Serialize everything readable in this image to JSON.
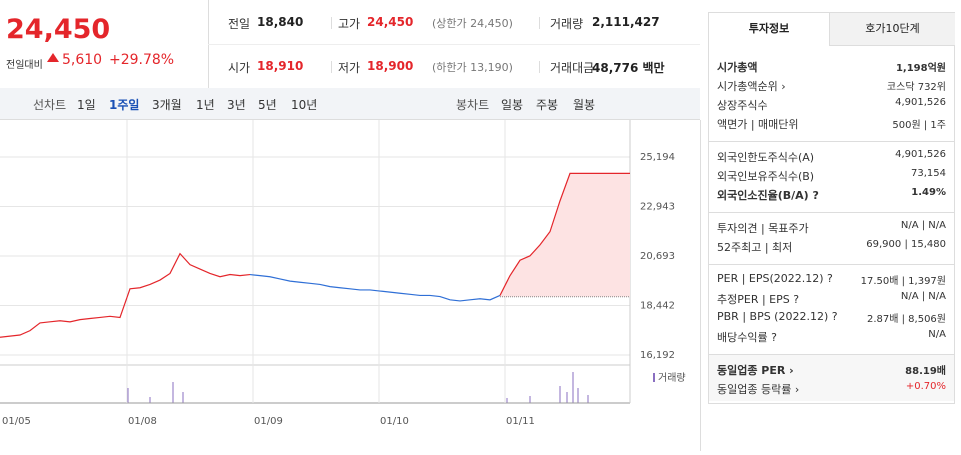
{
  "quote": {
    "price": "24,450",
    "change_label": "전일대비",
    "change": "5,610",
    "change_pct": "+29.78%"
  },
  "summary": [
    {
      "label": "전일",
      "value": "18,840"
    },
    {
      "label": "고가",
      "value": "24,450",
      "note": "(상한가 24,450)",
      "color": "#e4262b"
    },
    {
      "label": "거래량",
      "value": "2,111,427"
    },
    {
      "label": "시가",
      "value": "18,910",
      "color": "#e4262b"
    },
    {
      "label": "저가",
      "value": "18,900",
      "note": "(하한가 13,190)",
      "color": "#e4262b"
    },
    {
      "label": "거래대금",
      "value": "48,776 백만"
    }
  ],
  "line_tabs": {
    "label": "선차트",
    "items": [
      "1일",
      "1주일",
      "3개월",
      "1년",
      "3년",
      "5년",
      "10년"
    ],
    "active": 1
  },
  "candle_tabs": {
    "label": "봉차트",
    "items": [
      "일봉",
      "주봉",
      "월봉"
    ]
  },
  "chart": {
    "type": "line",
    "ylim": [
      16192,
      25194
    ],
    "yticks": [
      {
        "value": 25194,
        "label": "25,194"
      },
      {
        "value": 22943,
        "label": "22,943"
      },
      {
        "value": 20693,
        "label": "20,693"
      },
      {
        "value": 18442,
        "label": "18,442"
      },
      {
        "value": 16192,
        "label": "16,192"
      }
    ],
    "x_labels": [
      "01/05",
      "01/08",
      "01/09",
      "01/10",
      "01/11"
    ],
    "volume_label": "거래량",
    "series": [
      {
        "color": "#e4262b",
        "values": [
          17000,
          17050,
          17100,
          17300,
          17650,
          17700,
          17750,
          17700,
          17800,
          17850,
          17900,
          17950,
          17900,
          19200,
          19250,
          19400,
          19600,
          19900,
          20800,
          20300,
          20100,
          19900,
          19750,
          19850,
          19800,
          19850,
          null,
          null,
          null,
          null,
          null,
          null,
          null,
          null,
          null,
          null,
          null,
          null,
          null,
          null,
          null,
          null,
          null,
          null,
          null,
          null,
          null,
          null,
          null,
          null,
          null,
          null,
          null,
          null,
          null,
          null,
          null,
          null,
          null,
          null,
          null,
          null,
          null,
          null
        ]
      },
      {
        "color": "#2f6fd6",
        "values": [
          null,
          null,
          null,
          null,
          null,
          null,
          null,
          null,
          null,
          null,
          null,
          null,
          null,
          null,
          null,
          null,
          null,
          null,
          null,
          null,
          null,
          null,
          null,
          null,
          null,
          19850,
          19800,
          19750,
          19650,
          19550,
          19500,
          19450,
          19400,
          19300,
          19250,
          19200,
          19150,
          19150,
          19100,
          19050,
          19000,
          18950,
          18900,
          18900,
          18850,
          18700,
          18650,
          18700,
          18750,
          18700,
          18900,
          null,
          null,
          null,
          null,
          null,
          null,
          null,
          null,
          null,
          null,
          null,
          null,
          null
        ]
      },
      {
        "color": "#e4262b",
        "values": [
          null,
          null,
          null,
          null,
          null,
          null,
          null,
          null,
          null,
          null,
          null,
          null,
          null,
          null,
          null,
          null,
          null,
          null,
          null,
          null,
          null,
          null,
          null,
          null,
          null,
          null,
          null,
          null,
          null,
          null,
          null,
          null,
          null,
          null,
          null,
          null,
          null,
          null,
          null,
          null,
          null,
          null,
          null,
          null,
          null,
          null,
          null,
          null,
          null,
          null,
          18900,
          19800,
          20500,
          20700,
          21200,
          21800,
          23200,
          24450,
          24450,
          24450,
          24450,
          24450,
          24450,
          24450
        ]
      }
    ]
  },
  "panel": {
    "tabs": [
      "투자정보",
      "호가10단계"
    ],
    "groups": [
      [
        {
          "label": "시가총액",
          "value": "1,198억원",
          "bold": true
        },
        {
          "label": "시가총액순위 ›",
          "value": "코스닥 732위"
        },
        {
          "label": "상장주식수",
          "value": "4,901,526"
        },
        {
          "label": "액면가 | 매매단위",
          "value": "500원 | 1주"
        }
      ],
      [
        {
          "label": "외국인한도주식수(A)",
          "value": "4,901,526"
        },
        {
          "label": "외국인보유주식수(B)",
          "value": "73,154"
        },
        {
          "label": "외국인소진율(B/A) ?",
          "value": "1.49%",
          "bold": true
        }
      ],
      [
        {
          "label": "투자의견 | 목표주가",
          "value": "N/A | N/A"
        },
        {
          "label": "52주최고 | 최저",
          "value": "69,900 | 15,480"
        }
      ],
      [
        {
          "label": "PER | EPS(2022.12) ?",
          "value": "17.50배 | 1,397원"
        },
        {
          "label": "추정PER | EPS ?",
          "value": "N/A | N/A"
        },
        {
          "label": "PBR | BPS (2022.12) ?",
          "value": "2.87배 | 8,506원"
        },
        {
          "label": "배당수익률 ?",
          "value": "N/A"
        }
      ],
      [
        {
          "label": "동일업종 PER ›",
          "value": "88.19배",
          "bold": true
        },
        {
          "label": "동일업종 등락률 ›",
          "value": "+0.70%",
          "color": "#e4262b"
        }
      ]
    ]
  }
}
